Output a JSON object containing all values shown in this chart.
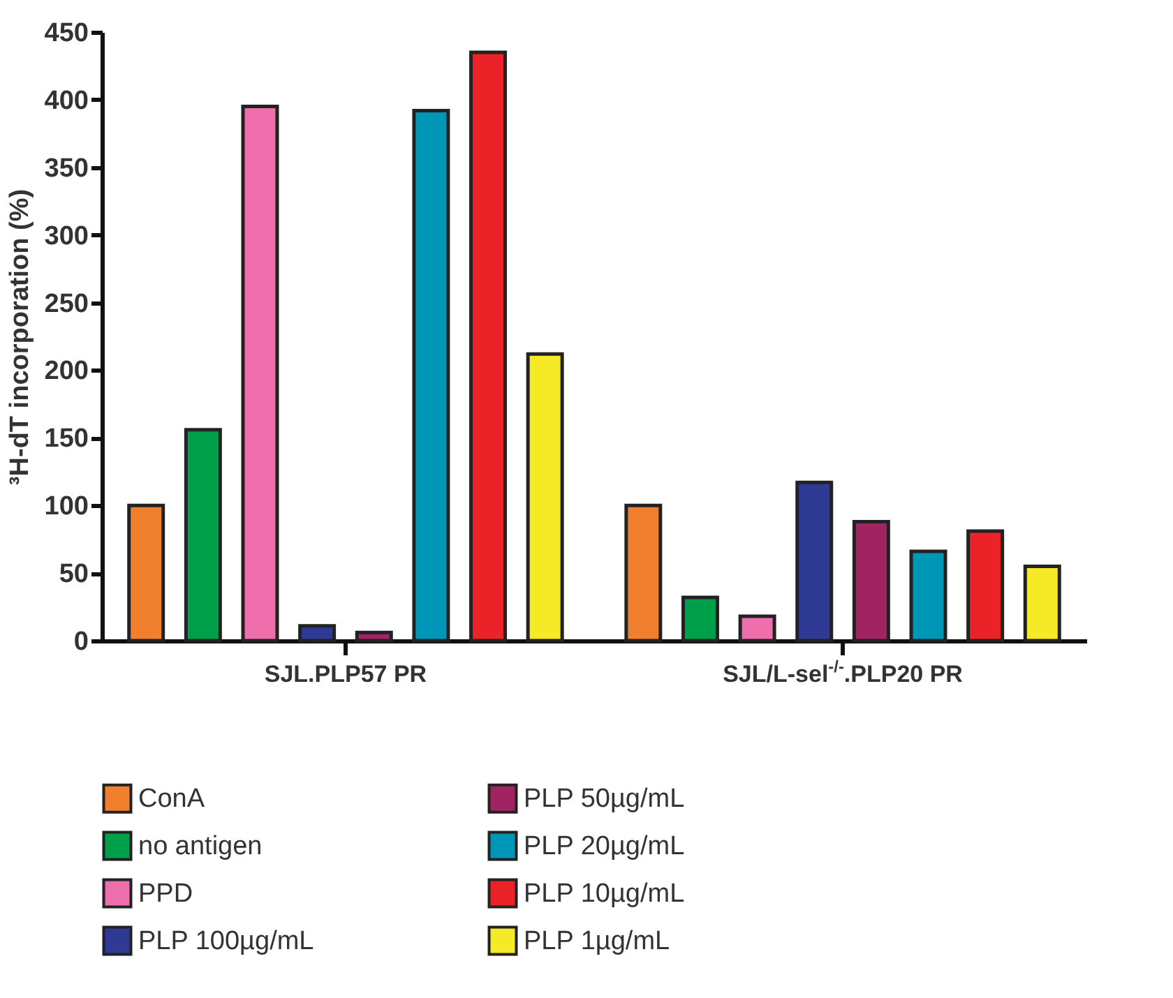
{
  "chart_data": {
    "type": "bar",
    "ylabel": "³H-dT incorporation (%)",
    "categories": [
      "SJL.PLP57 PR",
      "SJL/L-sel$^{-/-}$.PLP20 PR"
    ],
    "series": [
      {
        "name": "ConA",
        "color": "#f07f2e",
        "values": [
          100,
          100
        ]
      },
      {
        "name": "no antigen",
        "color": "#00a04a",
        "values": [
          156,
          32
        ]
      },
      {
        "name": "PPD",
        "color": "#ee6fab",
        "values": [
          395,
          18
        ]
      },
      {
        "name": "PLP 100µg/mL",
        "color": "#2e3a94",
        "values": [
          11,
          117
        ]
      },
      {
        "name": "PLP 50µg/mL",
        "color": "#a12462",
        "values": [
          6,
          88
        ]
      },
      {
        "name": "PLP 20µg/mL",
        "color": "#0096b8",
        "values": [
          392,
          66
        ]
      },
      {
        "name": "PLP 10µg/mL",
        "color": "#ec2229",
        "values": [
          435,
          81
        ]
      },
      {
        "name": "PLP 1µg/mL",
        "color": "#f6ea26",
        "values": [
          212,
          55
        ]
      }
    ],
    "ylim": [
      0,
      450
    ],
    "yticks": [
      0,
      50,
      100,
      150,
      200,
      250,
      300,
      350,
      400,
      450
    ],
    "grid": false,
    "legend": "bottom"
  }
}
